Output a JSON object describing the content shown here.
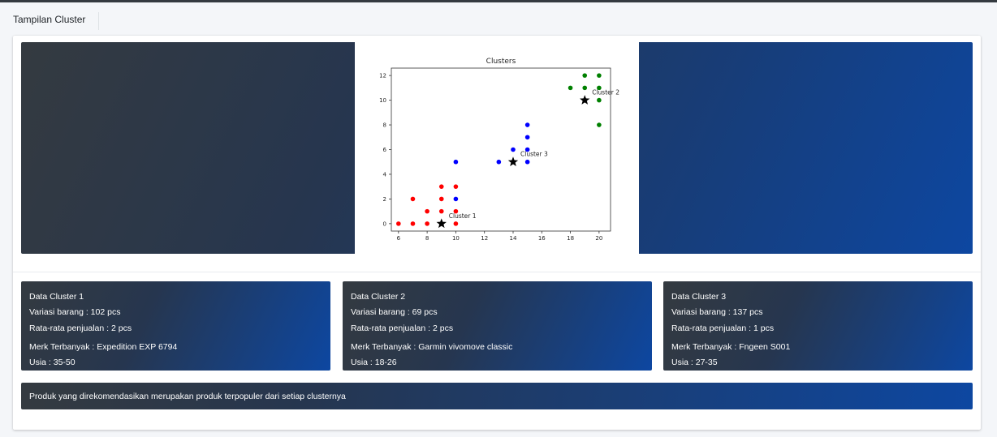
{
  "header": {
    "title": "Tampilan Cluster"
  },
  "chart_data": {
    "type": "scatter",
    "title": "Clusters",
    "xlabel": "",
    "ylabel": "",
    "xlim": [
      5.5,
      20.8
    ],
    "ylim": [
      -0.6,
      12.6
    ],
    "xticks": [
      6,
      8,
      10,
      12,
      14,
      16,
      18,
      20
    ],
    "yticks": [
      0,
      2,
      4,
      6,
      8,
      10,
      12
    ],
    "grid": false,
    "series": [
      {
        "color": "#ff0000",
        "points": [
          [
            6,
            0
          ],
          [
            7,
            0
          ],
          [
            8,
            0
          ],
          [
            9,
            0
          ],
          [
            10,
            0
          ],
          [
            8,
            1
          ],
          [
            9,
            1
          ],
          [
            10,
            1
          ],
          [
            7,
            2
          ],
          [
            9,
            2
          ],
          [
            9,
            3
          ],
          [
            10,
            3
          ]
        ]
      },
      {
        "color": "#0000ff",
        "points": [
          [
            10,
            2
          ],
          [
            10,
            5
          ],
          [
            13,
            5
          ],
          [
            14,
            6
          ],
          [
            15,
            5
          ],
          [
            15,
            6
          ],
          [
            15,
            7
          ],
          [
            15,
            8
          ]
        ]
      },
      {
        "color": "#008000",
        "points": [
          [
            18,
            11
          ],
          [
            19,
            11
          ],
          [
            19,
            12
          ],
          [
            20,
            12
          ],
          [
            20,
            11
          ],
          [
            20,
            10
          ],
          [
            20,
            8
          ]
        ]
      }
    ],
    "centroids": [
      {
        "label": "Cluster 1",
        "x": 9,
        "y": 0
      },
      {
        "label": "Cluster 2",
        "x": 19,
        "y": 10
      },
      {
        "label": "Cluster 3",
        "x": 14,
        "y": 5
      }
    ]
  },
  "clusters": [
    {
      "title": "Data Cluster 1",
      "variasi": "Variasi barang : 102 pcs",
      "rata": "Rata-rata penjualan : 2 pcs",
      "merk": "Merk Terbanyak : Expedition EXP 6794",
      "usia": "Usia : 35-50"
    },
    {
      "title": "Data Cluster 2",
      "variasi": "Variasi barang : 69 pcs",
      "rata": "Rata-rata penjualan : 2 pcs",
      "merk": "Merk Terbanyak : Garmin vivomove classic",
      "usia": "Usia : 18-26"
    },
    {
      "title": "Data Cluster 3",
      "variasi": "Variasi barang : 137 pcs",
      "rata": "Rata-rata penjualan : 1 pcs",
      "merk": "Merk Terbanyak : Fngeen S001",
      "usia": "Usia : 27-35"
    }
  ],
  "footer": {
    "text": "Produk yang direkomendasikan merupakan produk terpopuler dari setiap clusternya"
  }
}
